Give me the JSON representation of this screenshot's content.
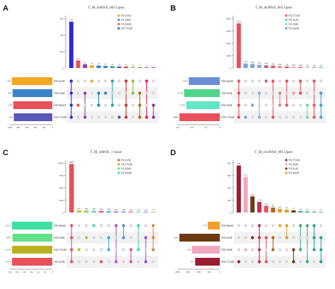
{
  "chart_data": [
    {
      "panel": "A",
      "type": "bar",
      "title": "T_M_miRNA_005 Upset",
      "ylim": [
        0,
        600
      ],
      "y_ticks": [
        0,
        200,
        400,
        600
      ],
      "set_ticks": [
        "1000",
        "800",
        "600",
        "400",
        "200",
        "0"
      ],
      "sets": [
        {
          "name": "NX1SvM",
          "size": 905,
          "color": "#f6a623"
        },
        {
          "name": "NX1SbM",
          "size": 890,
          "color": "#3b82c8"
        },
        {
          "name": "NX18shM",
          "size": 874,
          "color": "#e8505b"
        },
        {
          "name": "NX17CbM",
          "size": 862,
          "color": "#5a55b8"
        }
      ],
      "legend": [
        "NX1SvM",
        "NX1SbM",
        "NX18shM",
        "NX17CbM"
      ],
      "intersections": [
        {
          "value": 559,
          "color": "#2b2bd6",
          "members": [
            0,
            1,
            2,
            3
          ],
          "dot": "#2b2bd6"
        },
        {
          "value": 92,
          "color": "#e8505b",
          "members": [
            2
          ],
          "dot": "#e8505b"
        },
        {
          "value": 45,
          "color": "#8a3fb0",
          "members": [
            1,
            3
          ],
          "dot": "#8a3fb0"
        },
        {
          "value": 33,
          "color": "#f6a623",
          "members": [
            0
          ],
          "dot": "#f6a623"
        },
        {
          "value": 29,
          "color": "#1e88b5",
          "members": [
            1,
            2
          ],
          "dot": "#1e88b5"
        },
        {
          "value": 25,
          "color": "#3b82c8",
          "members": [
            1
          ],
          "dot": "#3b82c8"
        },
        {
          "value": 22,
          "color": "#2aa198",
          "members": [
            0,
            2
          ],
          "dot": "#2aa198"
        },
        {
          "value": 19,
          "color": "#5a55b8",
          "members": [
            3
          ],
          "dot": "#5a55b8"
        },
        {
          "value": 16,
          "color": "#c0392b",
          "members": [
            0,
            2,
            3
          ],
          "dot": "#c0392b"
        },
        {
          "value": 12,
          "color": "#8bc34a",
          "members": [
            0,
            1
          ],
          "dot": "#8bc34a"
        },
        {
          "value": 9,
          "color": "#b5651d",
          "members": [
            1,
            2,
            3
          ],
          "dot": "#b5651d"
        },
        {
          "value": 6,
          "color": "#e91e63",
          "members": [
            0,
            3
          ],
          "dot": "#e91e63"
        },
        {
          "value": 3,
          "color": "#9c27b0",
          "members": [
            2,
            3
          ],
          "dot": "#9c27b0"
        }
      ]
    },
    {
      "panel": "B",
      "type": "bar",
      "title": "T_M_lncRNA_005 Upset",
      "ylim": [
        0,
        8000
      ],
      "y_ticks": [
        0,
        2000,
        4000,
        6000,
        8000
      ],
      "set_ticks": [
        "15k",
        "10k",
        "5k",
        "0"
      ],
      "sets": [
        {
          "name": "NX16shM",
          "size": 11410,
          "color": "#6b8fd6"
        },
        {
          "name": "NX1SvM",
          "size": 13150,
          "color": "#4fd48a"
        },
        {
          "name": "NX1SbM",
          "size": 12370,
          "color": "#63e6c8"
        },
        {
          "name": "NX17CbM",
          "size": 14880,
          "color": "#e8505b"
        }
      ],
      "legend": [
        "NX17CbM",
        "NX1SvM",
        "NX1SbM",
        "NX16shM"
      ],
      "intersections": [
        {
          "value": 7205,
          "color": "#e8505b",
          "members": [
            0,
            1,
            2,
            3
          ],
          "dot": "#e8505b"
        },
        {
          "value": 720,
          "color": "#7b9ee0",
          "members": [
            3
          ],
          "dot": "#7b9ee0"
        },
        {
          "value": 640,
          "color": "#7fa3d8",
          "members": [
            2
          ],
          "dot": "#7fa3d8"
        },
        {
          "value": 520,
          "color": "#8fa8d8",
          "members": [
            1,
            3
          ],
          "dot": "#8fa8d8"
        },
        {
          "value": 430,
          "color": "#c06080",
          "members": [
            0
          ],
          "dot": "#c06080"
        },
        {
          "value": 360,
          "color": "#e8505b",
          "members": [
            0,
            3
          ],
          "dot": "#e8505b"
        },
        {
          "value": 300,
          "color": "#d48b8b",
          "members": [
            1,
            2
          ],
          "dot": "#d48b8b"
        },
        {
          "value": 250,
          "color": "#e8505b",
          "members": [
            0,
            2
          ],
          "dot": "#e8505b"
        },
        {
          "value": 200,
          "color": "#f0a0b0",
          "members": [
            1
          ],
          "dot": "#f0a0b0"
        },
        {
          "value": 160,
          "color": "#e8505b",
          "members": [
            0,
            1
          ],
          "dot": "#e8505b"
        },
        {
          "value": 120,
          "color": "#7fd4b0",
          "members": [
            2,
            3
          ],
          "dot": "#7fd4b0"
        },
        {
          "value": 90,
          "color": "#e8505b",
          "members": [
            0,
            2,
            3
          ],
          "dot": "#e8505b"
        },
        {
          "value": 60,
          "color": "#4f9ad6",
          "members": [
            1,
            2,
            3
          ],
          "dot": "#4f9ad6"
        }
      ]
    },
    {
      "panel": "C",
      "type": "bar",
      "title": "T_M_mRNA_1 Upset",
      "ylim": [
        0,
        10000
      ],
      "y_ticks": [
        0,
        2500,
        5000,
        7500,
        10000
      ],
      "set_ticks": [
        "15k",
        "14k",
        "13k",
        "12k",
        "4k",
        "2k",
        "0"
      ],
      "sets": [
        {
          "name": "NX18shM",
          "size": 15213,
          "color": "#3de0a0"
        },
        {
          "name": "NX1SbM",
          "size": 14975,
          "color": "#63e08a"
        },
        {
          "name": "NX17CbM",
          "size": 15155,
          "color": "#b8b020"
        },
        {
          "name": "NX1SvM",
          "size": 15150,
          "color": "#e8505b"
        }
      ],
      "legend": [
        "NX1SvM",
        "NX17CbM",
        "NX1SbM",
        "NX18shM"
      ],
      "intersections": [
        {
          "value": 9800,
          "color": "#e8505b",
          "members": [
            0,
            1,
            2,
            3
          ],
          "dot": "#e8505b"
        },
        {
          "value": 420,
          "color": "#c9b830",
          "members": [
            2
          ],
          "dot": "#c9b830"
        },
        {
          "value": 380,
          "color": "#8fd15a",
          "members": [
            1
          ],
          "dot": "#8fd15a"
        },
        {
          "value": 340,
          "color": "#5ad1c0",
          "members": [
            0
          ],
          "dot": "#5ad1c0"
        },
        {
          "value": 300,
          "color": "#e8505b",
          "members": [
            3
          ],
          "dot": "#e8505b"
        },
        {
          "value": 260,
          "color": "#3bb0d6",
          "members": [
            1,
            2
          ],
          "dot": "#3bb0d6"
        },
        {
          "value": 220,
          "color": "#b05ad6",
          "members": [
            0,
            3
          ],
          "dot": "#b05ad6"
        },
        {
          "value": 190,
          "color": "#5a8fd6",
          "members": [
            0,
            1
          ],
          "dot": "#5a8fd6"
        },
        {
          "value": 160,
          "color": "#d65aa0",
          "members": [
            2,
            3
          ],
          "dot": "#d65aa0"
        },
        {
          "value": 130,
          "color": "#3de0a0",
          "members": [
            0,
            2
          ],
          "dot": "#3de0a0"
        },
        {
          "value": 100,
          "color": "#8a5ad6",
          "members": [
            1,
            3
          ],
          "dot": "#8a5ad6"
        },
        {
          "value": 70,
          "color": "#e08a3d",
          "members": [
            0,
            1,
            2
          ],
          "dot": "#e08a3d"
        }
      ]
    },
    {
      "panel": "D",
      "type": "bar",
      "title": "T_M_circRNA_005 Upset",
      "ylim": [
        0,
        800
      ],
      "y_ticks": [
        0,
        200,
        400,
        600,
        800
      ],
      "set_ticks": [
        "2000",
        "1500",
        "1000",
        "500",
        "0"
      ],
      "sets": [
        {
          "name": "NX18shM",
          "size": 478,
          "color": "#f0a030"
        },
        {
          "name": "NX1SvM",
          "size": 1605,
          "color": "#6b3a10"
        },
        {
          "name": "NX1SbM",
          "size": 1108,
          "color": "#f0a8c0"
        },
        {
          "name": "NX17CbM",
          "size": 977,
          "color": "#9b1b30"
        }
      ],
      "legend": [
        "NX17CbM",
        "NX1SbM",
        "NX1SvM",
        "NX18shM"
      ],
      "intersections": [
        {
          "value": 758,
          "color": "#9b1b30",
          "members": [
            3
          ],
          "dot": "#9b1b30"
        },
        {
          "value": 575,
          "color": "#f0a8c0",
          "members": [
            2
          ],
          "dot": "#f0a8c0"
        },
        {
          "value": 260,
          "color": "#6b3a10",
          "members": [
            1
          ],
          "dot": "#6b3a10"
        },
        {
          "value": 170,
          "color": "#c0305a",
          "members": [
            0,
            1,
            2,
            3
          ],
          "dot": "#c0305a"
        },
        {
          "value": 110,
          "color": "#e8505b",
          "members": [
            1,
            3
          ],
          "dot": "#e8505b"
        },
        {
          "value": 80,
          "color": "#b5651d",
          "members": [
            1,
            2
          ],
          "dot": "#b5651d"
        },
        {
          "value": 60,
          "color": "#f0a030",
          "members": [
            0
          ],
          "dot": "#f0a030"
        },
        {
          "value": 45,
          "color": "#d4a030",
          "members": [
            0,
            1
          ],
          "dot": "#d4a030"
        },
        {
          "value": 35,
          "color": "#6b3a10",
          "members": [
            2,
            3
          ],
          "dot": "#6b3a10"
        },
        {
          "value": 25,
          "color": "#3bb07a",
          "members": [
            0,
            2
          ],
          "dot": "#3bb07a"
        },
        {
          "value": 18,
          "color": "#3bb07a",
          "members": [
            0,
            3
          ],
          "dot": "#3bb07a"
        },
        {
          "value": 12,
          "color": "#2aa198",
          "members": [
            0,
            1,
            2
          ],
          "dot": "#2aa198"
        },
        {
          "value": 8,
          "color": "#2aa198",
          "members": [
            1,
            2,
            3
          ],
          "dot": "#2aa198"
        }
      ]
    }
  ]
}
